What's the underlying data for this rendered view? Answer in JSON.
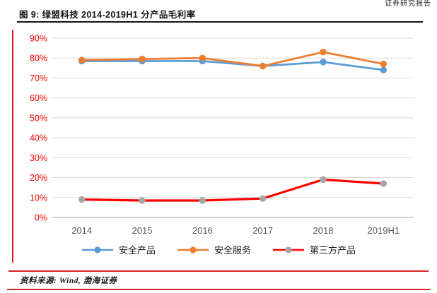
{
  "header": {
    "title": "图 9: 绿盟科技 2014-2019H1 分产品毛利率",
    "corner_text": "证券研究报告"
  },
  "footer": {
    "source": "资料来源: Wind, 渤海证券"
  },
  "theme": {
    "accent_red": "#e02020",
    "footer_rule_red": "#d92121",
    "title_rule_black": "#141414",
    "gridline_gray": "#d9d9d9",
    "axis_line_gray": "#a6a6a6"
  },
  "chart_data": {
    "type": "line",
    "title": "绿盟科技 2014-2019H1 分产品毛利率",
    "categories": [
      "2014",
      "2015",
      "2016",
      "2017",
      "2018",
      "2019H1"
    ],
    "series": [
      {
        "name": "安全产品",
        "color": "#5B9BD5",
        "marker_color": "#5B9BD5",
        "values": [
          78.5,
          78.5,
          78.5,
          76,
          78,
          74
        ]
      },
      {
        "name": "安全服务",
        "color": "#ED7D31",
        "marker_color": "#ED7D31",
        "values": [
          79,
          79.5,
          80,
          76,
          83,
          77
        ]
      },
      {
        "name": "第三方产品",
        "color": "#FF0000",
        "marker_color": "#A6A6A6",
        "values": [
          9,
          8.5,
          8.5,
          9.5,
          19,
          17
        ]
      }
    ],
    "ylim": [
      0,
      90
    ],
    "ytick_step": 10,
    "ytick_format": "percent",
    "grid": true,
    "legend_position": "bottom",
    "axis_label_colors": {
      "y": "#FF0000",
      "x": "#595959"
    }
  }
}
